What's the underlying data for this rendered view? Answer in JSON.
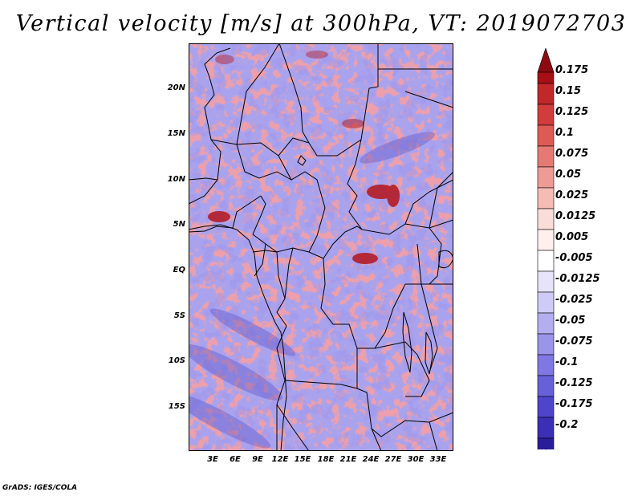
{
  "title": "Vertical velocity [m/s] at 300hPa, VT: 2019072703",
  "footer": "GrADS: IGES/COLA",
  "map": {
    "lat_labels": [
      "20N",
      "15N",
      "10N",
      "5N",
      "EQ",
      "5S",
      "10S",
      "15S"
    ],
    "lon_labels": [
      "3E",
      "6E",
      "9E",
      "12E",
      "15E",
      "18E",
      "21E",
      "24E",
      "27E",
      "30E",
      "33E"
    ],
    "field": "vertical velocity",
    "level": "300hPa",
    "valid_time": "2019072703"
  },
  "colorbar": {
    "labels": [
      "0.175",
      "0.15",
      "0.125",
      "0.1",
      "0.075",
      "0.05",
      "0.025",
      "0.0125",
      "0.005",
      "-0.005",
      "-0.0125",
      "-0.025",
      "-0.05",
      "-0.075",
      "-0.1",
      "-0.125",
      "-0.175",
      "-0.2"
    ],
    "colors": [
      "#a50f15",
      "#c0282a",
      "#d13c3c",
      "#de5a55",
      "#e57a74",
      "#ee9b95",
      "#f5bcb6",
      "#fadcd8",
      "#fff0ee",
      "#ffffff",
      "#e6e3fb",
      "#cfcaf6",
      "#b4aeef",
      "#9b94ea",
      "#8078e2",
      "#6761d8",
      "#4f45c8",
      "#3b2fb4",
      "#2a1d99"
    ],
    "overflow_colors": {
      "top": "#8c0a10",
      "bottom": "#1a0f80"
    }
  }
}
